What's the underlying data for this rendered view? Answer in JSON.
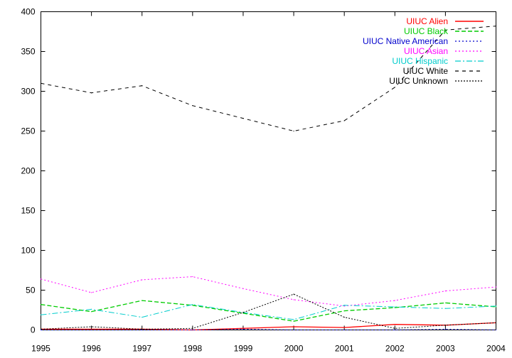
{
  "chart_data": {
    "type": "line",
    "title": "",
    "xlabel": "",
    "ylabel": "",
    "x": [
      1995,
      1996,
      1997,
      1998,
      1999,
      2000,
      2001,
      2002,
      2003,
      2004
    ],
    "xlim": [
      1995,
      2004
    ],
    "ylim": [
      0,
      400
    ],
    "yticks": [
      0,
      50,
      100,
      150,
      200,
      250,
      300,
      350,
      400
    ],
    "xticks": [
      1995,
      1996,
      1997,
      1998,
      1999,
      2000,
      2001,
      2002,
      2003,
      2004
    ],
    "grid": false,
    "legend_position": "top-right",
    "series": [
      {
        "name": "UIUC Alien",
        "color": "#ff0000",
        "dash": "solid",
        "values": [
          1,
          1,
          1,
          0,
          2,
          4,
          3,
          7,
          6,
          9
        ]
      },
      {
        "name": "UIUC Black",
        "color": "#00cc00",
        "dash": "dashed",
        "values": [
          32,
          23,
          37,
          31,
          21,
          11,
          24,
          28,
          34,
          29
        ]
      },
      {
        "name": "UIUC Native American",
        "color": "#0000cc",
        "dash": "dotted",
        "values": [
          0,
          0,
          0,
          0,
          1,
          0,
          0,
          0,
          1,
          0
        ]
      },
      {
        "name": "UIUC Asian",
        "color": "#ff00ff",
        "dash": "dotted",
        "values": [
          64,
          47,
          63,
          67,
          52,
          38,
          30,
          37,
          49,
          54
        ]
      },
      {
        "name": "UIUC Hispanic",
        "color": "#00cccc",
        "dash": "dashdot",
        "values": [
          19,
          26,
          16,
          32,
          22,
          13,
          31,
          29,
          27,
          30
        ]
      },
      {
        "name": "UIUC White",
        "color": "#000000",
        "dash": "longdash",
        "values": [
          310,
          298,
          307,
          282,
          266,
          250,
          263,
          305,
          377,
          382
        ]
      },
      {
        "name": "UIUC Unknown",
        "color": "#000000",
        "dash": "densedot",
        "values": [
          1,
          4,
          1,
          2,
          22,
          45,
          16,
          2,
          6,
          9
        ]
      }
    ]
  }
}
